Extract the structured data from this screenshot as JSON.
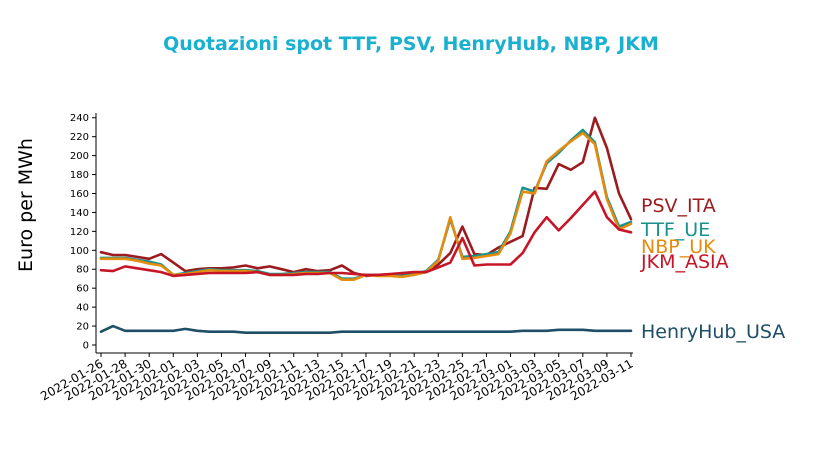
{
  "chart_data": {
    "type": "line",
    "title": "Quotazioni spot TTF, PSV, HenryHub, NBP, JKM",
    "ylabel": "Euro per MWh",
    "xlabel": "",
    "ylim": [
      0,
      245
    ],
    "yticks": [
      0,
      20,
      40,
      60,
      80,
      100,
      120,
      140,
      160,
      180,
      200,
      220,
      240
    ],
    "x": [
      "2022-01-26",
      "2022-01-27",
      "2022-01-28",
      "2022-01-29",
      "2022-01-30",
      "2022-01-31",
      "2022-02-01",
      "2022-02-02",
      "2022-02-03",
      "2022-02-04",
      "2022-02-05",
      "2022-02-06",
      "2022-02-07",
      "2022-02-08",
      "2022-02-09",
      "2022-02-10",
      "2022-02-11",
      "2022-02-12",
      "2022-02-13",
      "2022-02-14",
      "2022-02-15",
      "2022-02-16",
      "2022-02-17",
      "2022-02-18",
      "2022-02-19",
      "2022-02-20",
      "2022-02-21",
      "2022-02-22",
      "2022-02-23",
      "2022-02-24",
      "2022-02-25",
      "2022-02-26",
      "2022-02-27",
      "2022-02-28",
      "2022-03-01",
      "2022-03-02",
      "2022-03-03",
      "2022-03-04",
      "2022-03-05",
      "2022-03-06",
      "2022-03-07",
      "2022-03-08",
      "2022-03-09",
      "2022-03-10",
      "2022-03-11"
    ],
    "xticks": [
      "2022-01-26",
      "2022-01-28",
      "2022-01-30",
      "2022-02-01",
      "2022-02-03",
      "2022-02-05",
      "2022-02-07",
      "2022-02-09",
      "2022-02-11",
      "2022-02-13",
      "2022-02-15",
      "2022-02-17",
      "2022-02-19",
      "2022-02-21",
      "2022-02-23",
      "2022-02-25",
      "2022-02-27",
      "2022-03-01",
      "2022-03-03",
      "2022-03-05",
      "2022-03-07",
      "2022-03-09",
      "2022-03-11"
    ],
    "series": [
      {
        "name": "PSV_ITA",
        "color": "#9b1b1e",
        "values": [
          98,
          95,
          95,
          93,
          91,
          96,
          87,
          78,
          80,
          81,
          81,
          82,
          84,
          81,
          83,
          80,
          77,
          80,
          78,
          79,
          84,
          76,
          73,
          74,
          74,
          74,
          75,
          77,
          85,
          97,
          125,
          96,
          95,
          103,
          109,
          115,
          166,
          165,
          191,
          185,
          193,
          240,
          208,
          160,
          133
        ]
      },
      {
        "name": "TTF_UE",
        "color": "#16918e",
        "values": [
          92,
          92,
          92,
          90,
          88,
          85,
          74,
          76,
          78,
          80,
          79,
          79,
          79,
          78,
          75,
          75,
          76,
          77,
          77,
          77,
          70,
          70,
          74,
          74,
          74,
          73,
          75,
          78,
          90,
          133,
          93,
          94,
          96,
          98,
          120,
          166,
          162,
          192,
          203,
          216,
          227,
          214,
          156,
          125,
          130
        ]
      },
      {
        "name": "NBP_UK",
        "color": "#e58c0e",
        "values": [
          91,
          91,
          91,
          89,
          86,
          84,
          74,
          75,
          77,
          79,
          78,
          78,
          78,
          77,
          74,
          74,
          75,
          76,
          76,
          76,
          69,
          69,
          74,
          73,
          73,
          72,
          74,
          77,
          89,
          135,
          91,
          92,
          94,
          96,
          118,
          162,
          160,
          194,
          205,
          215,
          224,
          212,
          154,
          122,
          128
        ]
      },
      {
        "name": "JKM_ASIA",
        "color": "#c71528",
        "values": [
          79,
          78,
          83,
          81,
          79,
          77,
          73,
          74,
          75,
          76,
          76,
          76,
          76,
          77,
          74,
          74,
          74,
          75,
          75,
          76,
          76,
          75,
          74,
          74,
          75,
          76,
          77,
          77,
          82,
          87,
          113,
          84,
          85,
          85,
          85,
          97,
          119,
          135,
          121,
          134,
          148,
          162,
          135,
          122,
          119
        ]
      },
      {
        "name": "HenryHub_USA",
        "color": "#1f4e67",
        "values": [
          14,
          20,
          15,
          15,
          15,
          15,
          15,
          17,
          15,
          14,
          14,
          14,
          13,
          13,
          13,
          13,
          13,
          13,
          13,
          13,
          14,
          14,
          14,
          14,
          14,
          14,
          14,
          14,
          14,
          14,
          14,
          14,
          14,
          14,
          14,
          15,
          15,
          15,
          16,
          16,
          16,
          15,
          15,
          15,
          15
        ]
      }
    ]
  }
}
